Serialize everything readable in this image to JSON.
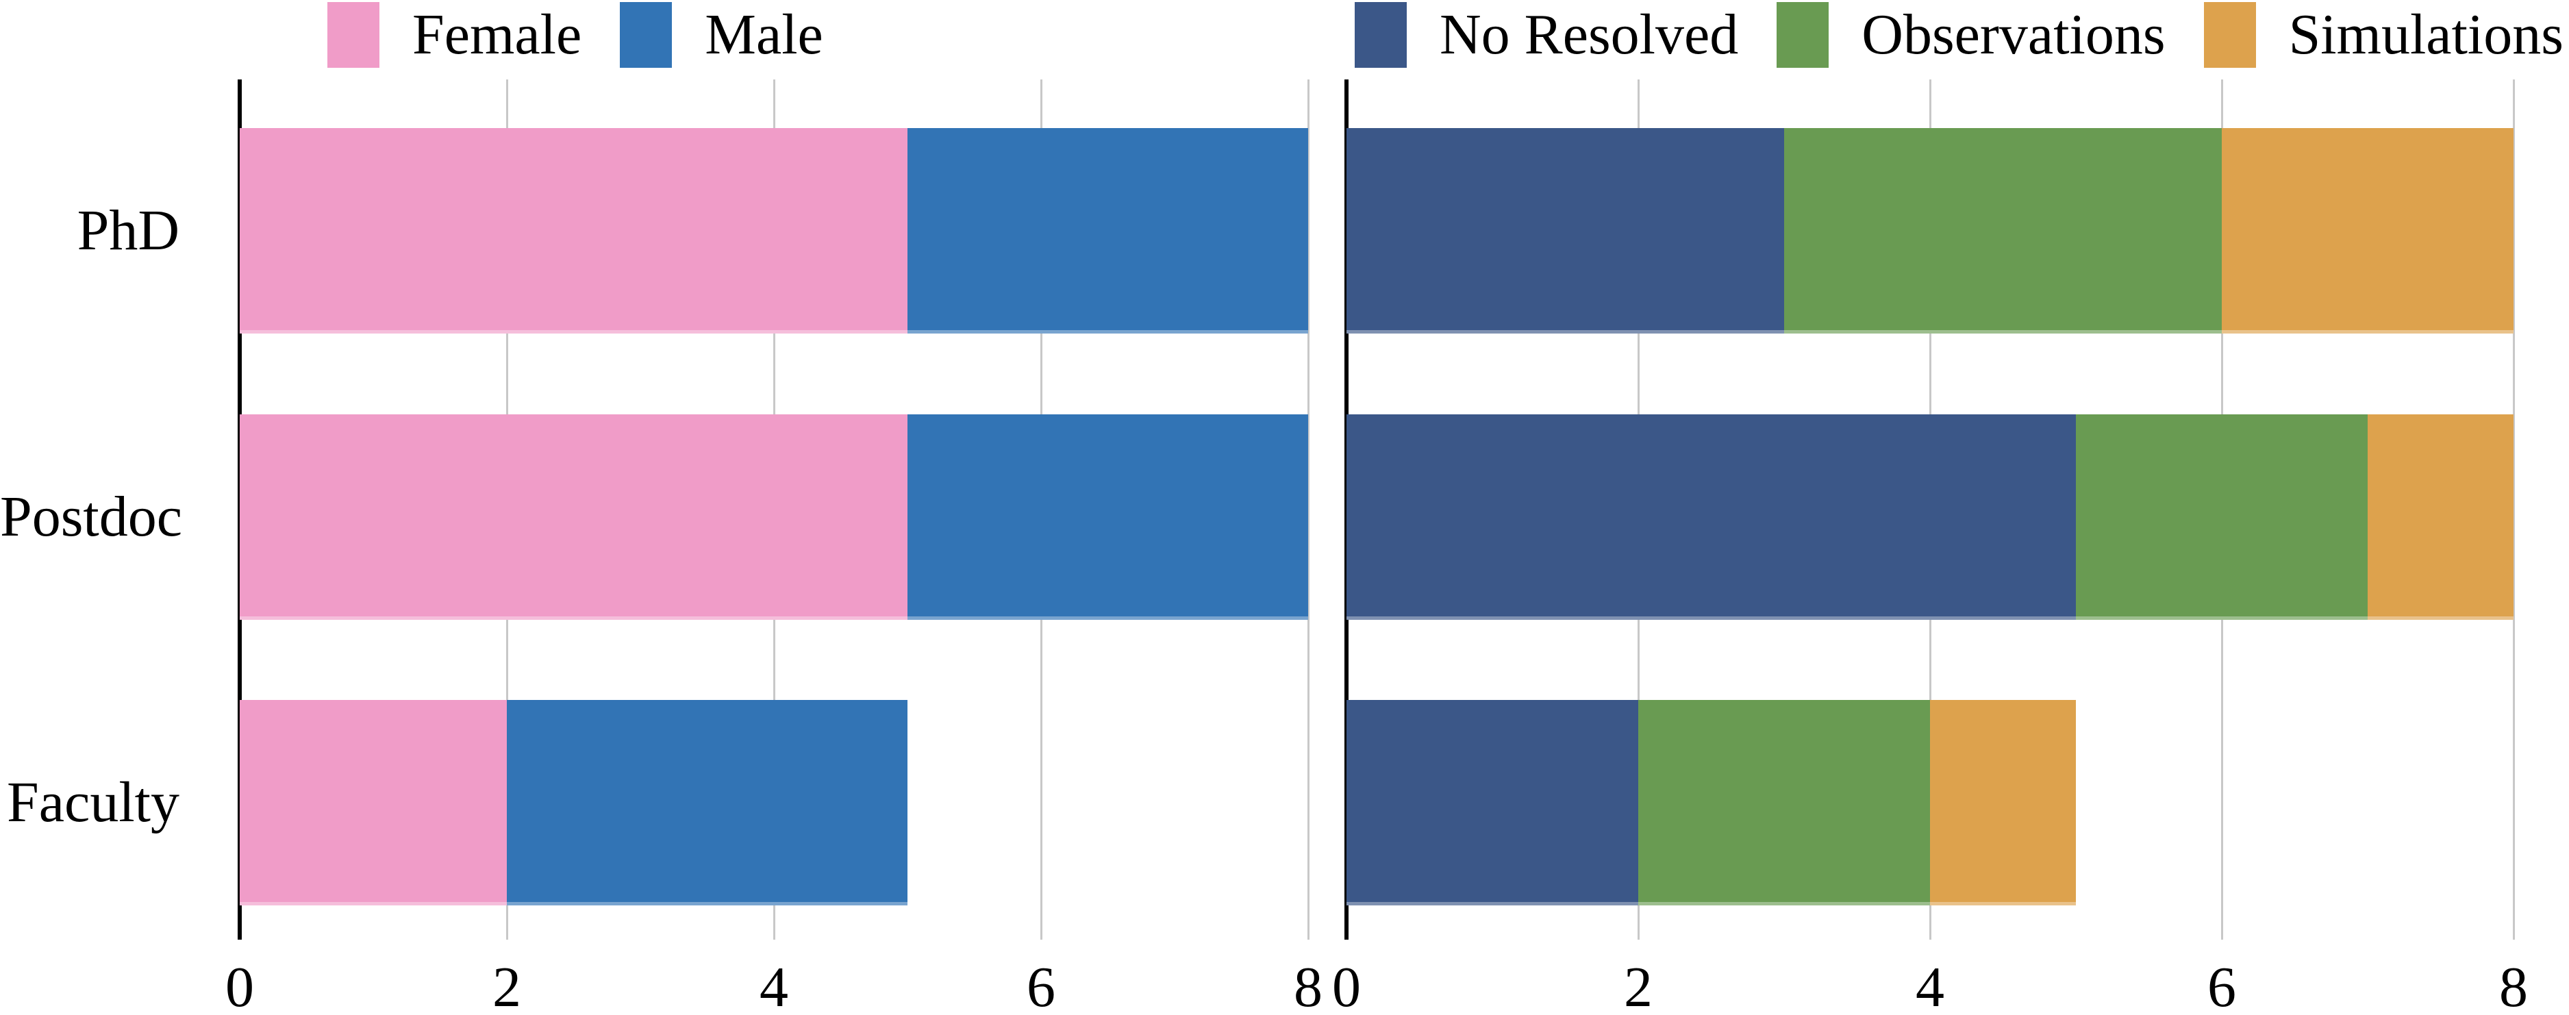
{
  "figure": {
    "background": "#ffffff",
    "axis_color": "#000000",
    "grid_color": "#c8c8c8",
    "text_color": "#000000"
  },
  "axes": {
    "categories": [
      "PhD",
      "Postdoc",
      "Faculty"
    ]
  },
  "chart_data": [
    {
      "type": "bar",
      "orientation": "horizontal",
      "stacked": true,
      "title": "",
      "xlabel": "",
      "ylabel": "",
      "categories": [
        "PhD",
        "Postdoc",
        "Faculty"
      ],
      "series": [
        {
          "name": "Female",
          "color": "#F09CC8",
          "values": [
            5,
            5,
            2
          ]
        },
        {
          "name": "Male",
          "color": "#3274B5",
          "values": [
            3,
            3,
            3
          ]
        }
      ],
      "xlim": [
        0,
        8
      ],
      "xticks": [
        0,
        2,
        4,
        6,
        8
      ],
      "grid": true,
      "legend_position": "top"
    },
    {
      "type": "bar",
      "orientation": "horizontal",
      "stacked": true,
      "title": "",
      "xlabel": "",
      "ylabel": "",
      "categories": [
        "PhD",
        "Postdoc",
        "Faculty"
      ],
      "series": [
        {
          "name": "No Resolved",
          "color": "#3B5788",
          "values": [
            3,
            5,
            2
          ]
        },
        {
          "name": "Observations",
          "color": "#699B52",
          "values": [
            3,
            2,
            2
          ]
        },
        {
          "name": "Simulations",
          "color": "#DDA24D",
          "values": [
            2,
            1,
            1
          ]
        }
      ],
      "xlim": [
        0,
        8
      ],
      "xticks": [
        0,
        2,
        4,
        6,
        8
      ],
      "grid": true,
      "legend_position": "top"
    }
  ]
}
